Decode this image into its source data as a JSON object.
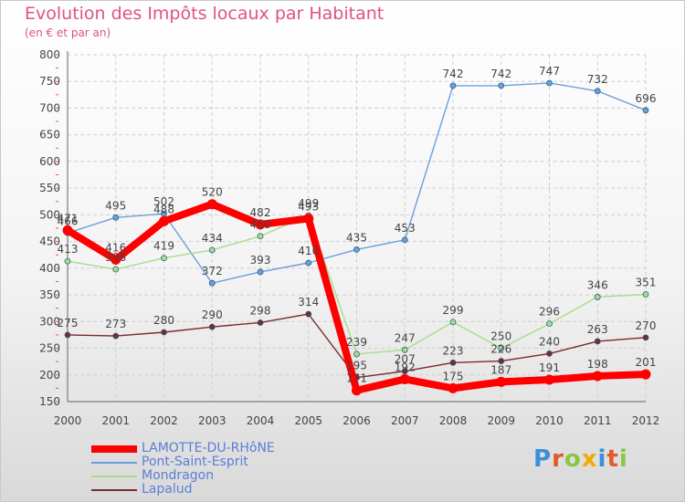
{
  "title": "Evolution des Impôts locaux par Habitant",
  "subtitle": "(en € et par an)",
  "logo": {
    "text": "Proxiti",
    "colors": [
      "#3a8fd8",
      "#e05a2a",
      "#8cc63f",
      "#f2a900",
      "#3a8fd8",
      "#e05a2a",
      "#8cc63f"
    ]
  },
  "chart_data": {
    "type": "line",
    "x": [
      "2000",
      "2001",
      "2002",
      "2003",
      "2004",
      "2005",
      "2006",
      "2007",
      "2008",
      "2009",
      "2010",
      "2011",
      "2012"
    ],
    "ylim": [
      150,
      800
    ],
    "yticks": [
      "150",
      "200",
      "250",
      "300",
      "350",
      "400",
      "450",
      "500",
      "550",
      "600",
      "650",
      "700",
      "750",
      "800"
    ],
    "grid": true,
    "legend_position": "bottom",
    "series": [
      {
        "name": "LAMOTTE-DU-RHôNE",
        "color": "#ff0000",
        "values": [
          471,
          416,
          488,
          520,
          482,
          493,
          171,
          192,
          175,
          187,
          191,
          198,
          201
        ]
      },
      {
        "name": "Pont-Saint-Esprit",
        "color": "#6aa0d8",
        "values": [
          466,
          495,
          502,
          372,
          393,
          410,
          435,
          453,
          742,
          742,
          747,
          732,
          696
        ]
      },
      {
        "name": "Mondragon",
        "color": "#a6de88",
        "values": [
          413,
          398,
          419,
          434,
          460,
          499,
          239,
          247,
          299,
          250,
          296,
          346,
          351
        ]
      },
      {
        "name": "Lapalud",
        "color": "#7a2a2a",
        "values": [
          275,
          273,
          280,
          290,
          298,
          314,
          195,
          207,
          223,
          226,
          240,
          263,
          270
        ]
      }
    ]
  }
}
